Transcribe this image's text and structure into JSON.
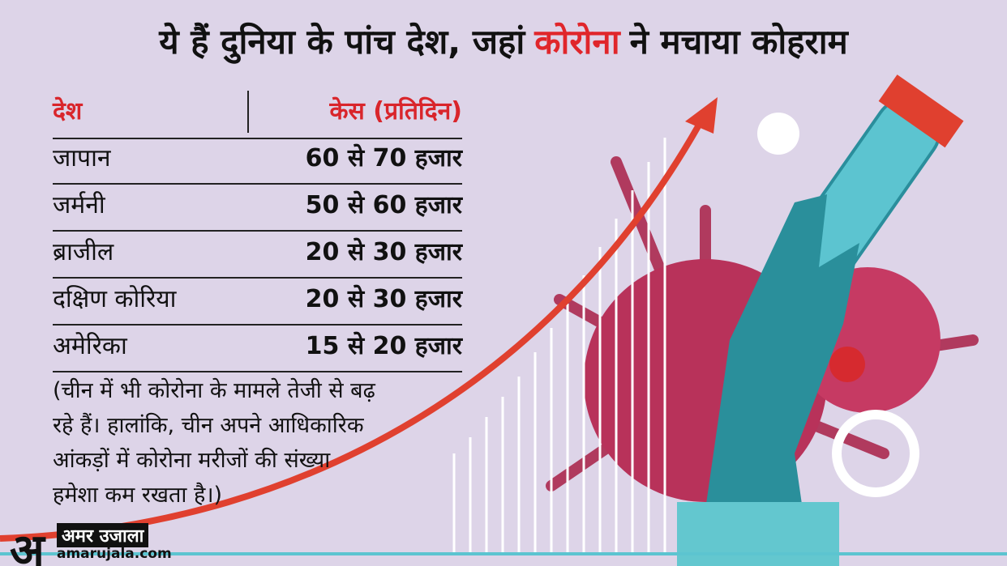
{
  "title": {
    "before": "ये हैं दुनिया के पांच देश, जहां",
    "highlight": "कोरोना",
    "after": "ने मचाया कोहराम"
  },
  "table": {
    "headers": [
      "देश",
      "केस (प्रतिदिन)"
    ],
    "rows": [
      [
        "जापान",
        "60 से 70 हजार"
      ],
      [
        "जर्मनी",
        "50 से 60 हजार"
      ],
      [
        "ब्राजील",
        "20 से 30 हजार"
      ],
      [
        "दक्षिण कोरिया",
        "20 से 30 हजार"
      ],
      [
        "अमेरिका",
        "15 से 20 हजार"
      ]
    ]
  },
  "note": [
    "(चीन में भी कोरोना के मामले तेजी से बढ़",
    "रहे हैं। हालांकि, चीन अपने आधिकारिक",
    "आंकड़ों में कोरोना मरीजों की संख्या",
    "हमेशा कम रखता है।)"
  ],
  "logo": {
    "mark": "अ",
    "name": "अमर उजाला",
    "site": "amarujala.com"
  }
}
